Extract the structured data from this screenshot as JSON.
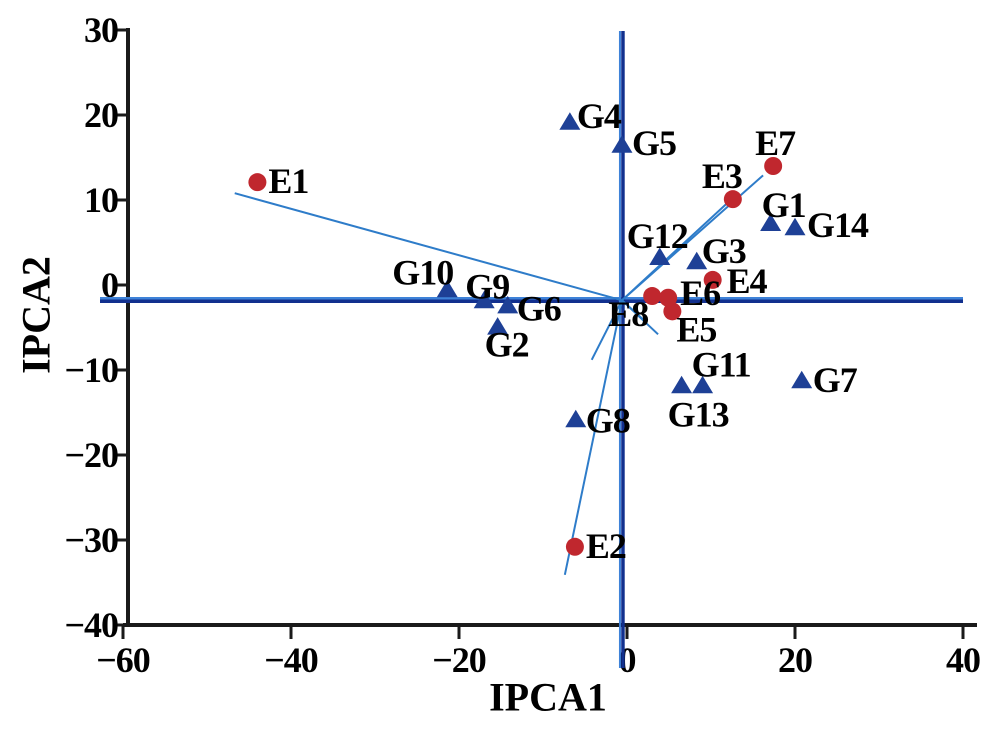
{
  "figure": {
    "background": "#ffffff",
    "kind": "AMMI biplot (IPCA2 vs IPCA1), environments as red circles, genotypes as blue triangles, rays from origin to environments"
  },
  "chart_data": {
    "type": "scatter",
    "title": "",
    "xlabel": "IPCA1",
    "ylabel": "IPCA2",
    "xlim": [
      -60,
      40
    ],
    "ylim": [
      -40,
      30
    ],
    "x_tick_labels": [
      "−60",
      "−40",
      "−20",
      "0",
      "20",
      "40"
    ],
    "x_tick_values": [
      -60,
      -40,
      -20,
      0,
      20,
      40
    ],
    "y_tick_labels": [
      "30",
      "20",
      "10",
      "0",
      "−10",
      "−20",
      "−30",
      "−40"
    ],
    "y_tick_values": [
      30,
      20,
      10,
      0,
      -10,
      -20,
      -30,
      -40
    ],
    "grid": false,
    "legend_position": "none",
    "axis_cross": {
      "x": -0.6,
      "y": -1.8
    },
    "colors": {
      "environment_marker": "#C0272E",
      "genotype_marker": "#1E4096",
      "ray": "#2E7CC9",
      "axis_dark": "#12308E",
      "axis_light": "#3E82D8",
      "frame": "#1A1A1A",
      "text": "#000000"
    },
    "series": [
      {
        "name": "environments",
        "marker": "circle",
        "color": "#C0272E",
        "points": [
          {
            "id": "E1",
            "x": -44.0,
            "y": 12.1,
            "label_dx": 11,
            "label_dy": -1
          },
          {
            "id": "E2",
            "x": -6.2,
            "y": -30.8,
            "label_dx": 11,
            "label_dy": -1
          },
          {
            "id": "E3",
            "x": 12.6,
            "y": 10.1,
            "label_dx": -31,
            "label_dy": -23
          },
          {
            "id": "E4",
            "x": 10.2,
            "y": 0.6,
            "label_dx": 14,
            "label_dy": 1
          },
          {
            "id": "E5",
            "x": 5.4,
            "y": -3.1,
            "label_dx": 4,
            "label_dy": 18
          },
          {
            "id": "E6",
            "x": 4.9,
            "y": -1.5,
            "label_dx": 12,
            "label_dy": -5
          },
          {
            "id": "E7",
            "x": 17.4,
            "y": 14.0,
            "label_dx": -18,
            "label_dy": -23
          },
          {
            "id": "E8",
            "x": 3.0,
            "y": -1.3,
            "label_dx": -44,
            "label_dy": 18
          }
        ]
      },
      {
        "name": "genotypes",
        "marker": "triangle",
        "color": "#1E4096",
        "points": [
          {
            "id": "G1",
            "x": 17.1,
            "y": 7.3,
            "label_dx": -9,
            "label_dy": -18
          },
          {
            "id": "G2",
            "x": -15.4,
            "y": -4.9,
            "label_dx": -13,
            "label_dy": 18
          },
          {
            "id": "G3",
            "x": 8.3,
            "y": 2.8,
            "label_dx": 5,
            "label_dy": -10
          },
          {
            "id": "G4",
            "x": -6.8,
            "y": 19.2,
            "label_dx": 7,
            "label_dy": -6
          },
          {
            "id": "G5",
            "x": -0.6,
            "y": 16.5,
            "label_dx": 10,
            "label_dy": -2
          },
          {
            "id": "G6",
            "x": -14.2,
            "y": -2.4,
            "label_dx": 9,
            "label_dy": 3
          },
          {
            "id": "G7",
            "x": 20.8,
            "y": -11.2,
            "label_dx": 11,
            "label_dy": 0
          },
          {
            "id": "G8",
            "x": -6.1,
            "y": -15.8,
            "label_dx": 10,
            "label_dy": 1
          },
          {
            "id": "G9",
            "x": -17.0,
            "y": -1.8,
            "label_dx": -19,
            "label_dy": -14
          },
          {
            "id": "G10",
            "x": -21.4,
            "y": -0.5,
            "label_dx": -55,
            "label_dy": -17
          },
          {
            "id": "G11",
            "x": 9.0,
            "y": -11.8,
            "label_dx": -11,
            "label_dy": -21
          },
          {
            "id": "G12",
            "x": 3.9,
            "y": 3.3,
            "label_dx": -33,
            "label_dy": -21
          },
          {
            "id": "G13",
            "x": 6.5,
            "y": -11.8,
            "label_dx": -14,
            "label_dy": 29
          },
          {
            "id": "G14",
            "x": 20.0,
            "y": 6.8,
            "label_dx": 12,
            "label_dy": -2
          }
        ]
      }
    ],
    "rays_from_origin": [
      {
        "to": "E1",
        "x": -46.7,
        "y": 10.8
      },
      {
        "to": "E2",
        "x": -7.4,
        "y": -34.1
      },
      {
        "to": "E3",
        "x": 11.9,
        "y": 9.6
      },
      {
        "to": "E7",
        "x": 16.2,
        "y": 12.9
      },
      {
        "to": "E8",
        "x": -4.2,
        "y": -8.8
      },
      {
        "to": "E6",
        "x": 2.3,
        "y": -4.4
      },
      {
        "to": "E5",
        "x": 3.7,
        "y": -5.8
      }
    ]
  }
}
